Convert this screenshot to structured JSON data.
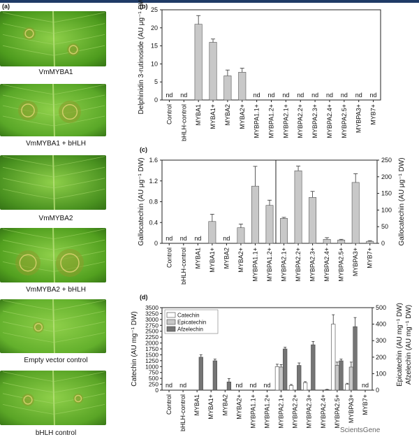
{
  "panel_a": {
    "label": "(a)",
    "leaves": [
      {
        "caption": "VmMYBA1",
        "color": "#4e9c1e"
      },
      {
        "caption": "VmMYBA1 + bHLH",
        "color": "#5aa828"
      },
      {
        "caption": "VmMYBA2",
        "color": "#4a9220"
      },
      {
        "caption": "VmMYBA2 + bHLH",
        "color": "#52a01f"
      },
      {
        "caption": "Empty vector control",
        "color": "#63b02c"
      },
      {
        "caption": "bHLH control",
        "color": "#5aa526"
      }
    ]
  },
  "watermark": "ScientsGene",
  "chart_data": [
    {
      "id": "b",
      "panel_label": "(b)",
      "type": "bar",
      "ylabel": "Delphinidin 3-rutinoside (AU μg⁻¹ DW)",
      "ylim": [
        0,
        25
      ],
      "yticks": [
        0,
        5,
        10,
        15,
        20,
        25
      ],
      "categories": [
        "Control",
        "bHLH-control",
        "MYBA1",
        "MYBA1+",
        "MYBA2",
        "MYBA2+",
        "MYBPA1.1+",
        "MYBPA1.2+",
        "MYBPA2.1+",
        "MYBPA2.2+",
        "MYBPA2.3+",
        "MYBPA2.4+",
        "MYBPA2.5+",
        "MYBPA3+",
        "MYB7+"
      ],
      "values": [
        null,
        null,
        21,
        16,
        6.7,
        7.7,
        null,
        null,
        null,
        null,
        null,
        null,
        null,
        null,
        null
      ],
      "errors": [
        0,
        0,
        2.4,
        0.9,
        1.6,
        1.1,
        0,
        0,
        0,
        0,
        0,
        0,
        0,
        0,
        0
      ],
      "nd_label": "nd"
    },
    {
      "id": "c",
      "panel_label": "(c)",
      "type": "bar",
      "ylabel_left": "Gallocatechin (AU μg⁻¹ DW)",
      "ylabel_right": "Gallocatechin (AU μg⁻¹ DW)",
      "ylim_left": [
        0,
        1.6
      ],
      "yticks_left": [
        "0",
        "0.4",
        "0.8",
        "1.2",
        "1.6"
      ],
      "ylim_right": [
        0,
        250
      ],
      "yticks_right": [
        "0",
        "50",
        "100",
        "150",
        "200",
        "250"
      ],
      "categories": [
        "Control",
        "bHLH-control",
        "MYBA1",
        "MYBA1+",
        "MYBA2",
        "MYBA2+",
        "MYBPA1.1+",
        "MYBPA1.2+",
        "MYBPA2.1+",
        "MYBPA2.2+",
        "MYBPA2.3+",
        "MYBPA2.4+",
        "MYBPA2.5+",
        "MYBPA3+",
        "MYB7+"
      ],
      "axis_for_category": [
        "L",
        "L",
        "L",
        "L",
        "L",
        "L",
        "L",
        "L",
        "R",
        "R",
        "R",
        "R",
        "R",
        "R",
        "R"
      ],
      "values": [
        null,
        null,
        null,
        0.42,
        null,
        0.3,
        1.1,
        0.73,
        75,
        218,
        138,
        12,
        10,
        183,
        6
      ],
      "errors": [
        0,
        0,
        0,
        0.14,
        0,
        0.07,
        0.38,
        0.1,
        3,
        14,
        18,
        5,
        2,
        26,
        2
      ],
      "nd_label": "nd"
    },
    {
      "id": "d",
      "panel_label": "(d)",
      "type": "bar",
      "ylabel_left": "Catechin (AU mg⁻¹ DW)",
      "ylabel_right_1": "Epicatechin (AU mg⁻¹ DW)",
      "ylabel_right_2": "Afzelechin (AU mg⁻¹ DW)",
      "ylim_left": [
        0,
        3500
      ],
      "yticks_left": [
        "0",
        "250",
        "500",
        "750",
        "1000",
        "1250",
        "1500",
        "1750",
        "2000",
        "2250",
        "2500",
        "2750",
        "3000",
        "3250",
        "3500"
      ],
      "ylim_right": [
        0,
        500
      ],
      "yticks_right": [
        "0",
        "100",
        "200",
        "300",
        "400",
        "500"
      ],
      "categories": [
        "Control",
        "bHLH-control",
        "MYBA1",
        "MYBA1+",
        "MYBA2",
        "MYBA2+",
        "MYBPA1.1+",
        "MYBPA1.2+",
        "MYBPA2.1+",
        "MYBPA2.2+",
        "MYBPA2.3+",
        "MYBPA2.4+",
        "MYBPA2.5+",
        "MYBPA3+",
        "MYB7+"
      ],
      "series": [
        {
          "name": "Catechin",
          "axis": "left",
          "color": "#ffffff",
          "values": [
            null,
            null,
            null,
            null,
            null,
            null,
            null,
            null,
            1000,
            200,
            320,
            null,
            2800,
            250,
            null
          ],
          "errors": [
            0,
            0,
            0,
            0,
            0,
            0,
            0,
            0,
            100,
            40,
            40,
            0,
            400,
            40,
            0
          ]
        },
        {
          "name": "Epicatechin",
          "axis": "right",
          "color": "#c8c8c8",
          "values": [
            null,
            null,
            null,
            null,
            null,
            null,
            null,
            null,
            140,
            null,
            null,
            null,
            150,
            140,
            null
          ],
          "errors": [
            0,
            0,
            0,
            0,
            0,
            0,
            0,
            0,
            15,
            0,
            0,
            0,
            20,
            30,
            0
          ]
        },
        {
          "name": "Afzelechin",
          "axis": "right",
          "color": "#757575",
          "values": [
            null,
            null,
            200,
            178,
            50,
            null,
            null,
            null,
            250,
            150,
            275,
            3,
            178,
            385,
            null
          ],
          "errors": [
            0,
            0,
            15,
            10,
            20,
            0,
            0,
            0,
            10,
            15,
            20,
            2,
            10,
            55,
            0
          ]
        }
      ],
      "nd_positions": [
        0,
        1,
        5,
        6,
        7,
        14
      ],
      "nd_label": "nd"
    }
  ]
}
